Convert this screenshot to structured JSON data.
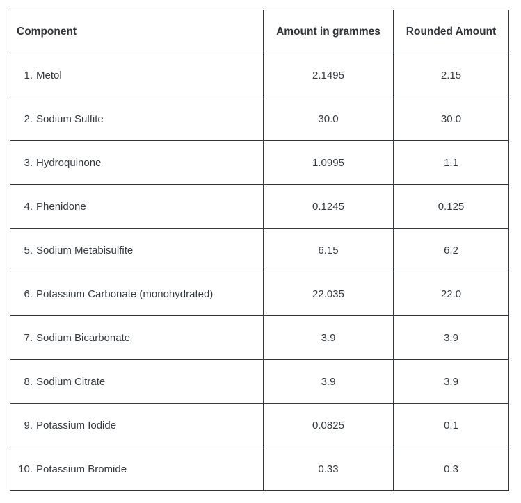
{
  "table": {
    "headers": {
      "component": "Component",
      "amount": "Amount in grammes",
      "rounded": "Rounded Amount"
    },
    "rows": [
      {
        "number": "1.",
        "name": "Metol",
        "amount": "2.1495",
        "rounded": "2.15"
      },
      {
        "number": "2.",
        "name": "Sodium Sulfite",
        "amount": "30.0",
        "rounded": "30.0"
      },
      {
        "number": "3.",
        "name": "Hydroquinone",
        "amount": "1.0995",
        "rounded": "1.1"
      },
      {
        "number": "4.",
        "name": "Phenidone",
        "amount": "0.1245",
        "rounded": "0.125"
      },
      {
        "number": "5.",
        "name": "Sodium Metabisulfite",
        "amount": "6.15",
        "rounded": "6.2"
      },
      {
        "number": "6.",
        "name": "Potassium Carbonate (monohydrated)",
        "amount": "22.035",
        "rounded": "22.0"
      },
      {
        "number": "7.",
        "name": "Sodium Bicarbonate",
        "amount": "3.9",
        "rounded": "3.9"
      },
      {
        "number": "8.",
        "name": "Sodium Citrate",
        "amount": "3.9",
        "rounded": "3.9"
      },
      {
        "number": "9.",
        "name": "Potassium Iodide",
        "amount": "0.0825",
        "rounded": "0.1"
      },
      {
        "number": "10.",
        "name": "Potassium Bromide",
        "amount": "0.33",
        "rounded": "0.3"
      }
    ]
  },
  "colors": {
    "border": "#343a40",
    "text": "#343a40",
    "background": "#ffffff"
  }
}
